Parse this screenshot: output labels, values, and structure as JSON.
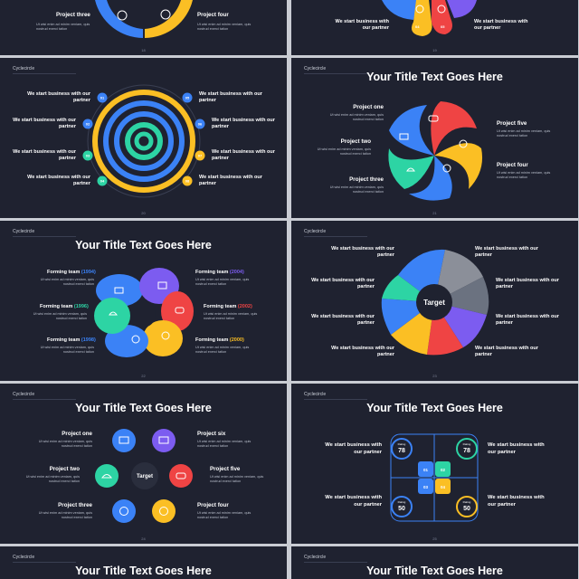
{
  "header": "Cyclecircle",
  "title": "Your Title Text Goes Here",
  "partner_text": "We start business with our partner",
  "body_text": "Ut wisi enim ad minim veniam, quis nostrud exerci tation",
  "slide1": {
    "left": "Project three",
    "right": "Project four",
    "page": "18"
  },
  "slide2": {
    "page": "19"
  },
  "slide3": {
    "nums": [
      "01",
      "02",
      "03",
      "04",
      "05",
      "06",
      "07",
      "08"
    ],
    "page": "20"
  },
  "slide4": {
    "labels": [
      "Project one",
      "Project two",
      "Project three",
      "Project five",
      "Project four"
    ],
    "page": "21"
  },
  "slide5": {
    "labels": [
      "Forming team",
      "Forming team",
      "Forming team",
      "Forming team",
      "Forming team",
      "Forming team"
    ],
    "years": [
      "(1994)",
      "(1996)",
      "(1998)",
      "(2004)",
      "(2002)",
      "(2000)"
    ],
    "page": "22"
  },
  "slide6": {
    "center": "Target",
    "page": "23"
  },
  "slide7": {
    "labels": [
      "Project one",
      "Project two",
      "Project three",
      "Project six",
      "Project five",
      "Project four"
    ],
    "center": "Target",
    "page": "24"
  },
  "slide8": {
    "quads": [
      "01",
      "02",
      "03",
      "04"
    ],
    "badge": "Rating",
    "values": [
      "78",
      "78",
      "50",
      "50"
    ],
    "page": "25"
  },
  "colors": {
    "bg": "#1f2230",
    "blue": "#3b82f6",
    "teal": "#2dd4a4",
    "orange": "#fb923c",
    "yellow": "#fbbf24",
    "red": "#ef4444",
    "purple": "#7c5cf0",
    "gray": "#6b7280"
  }
}
